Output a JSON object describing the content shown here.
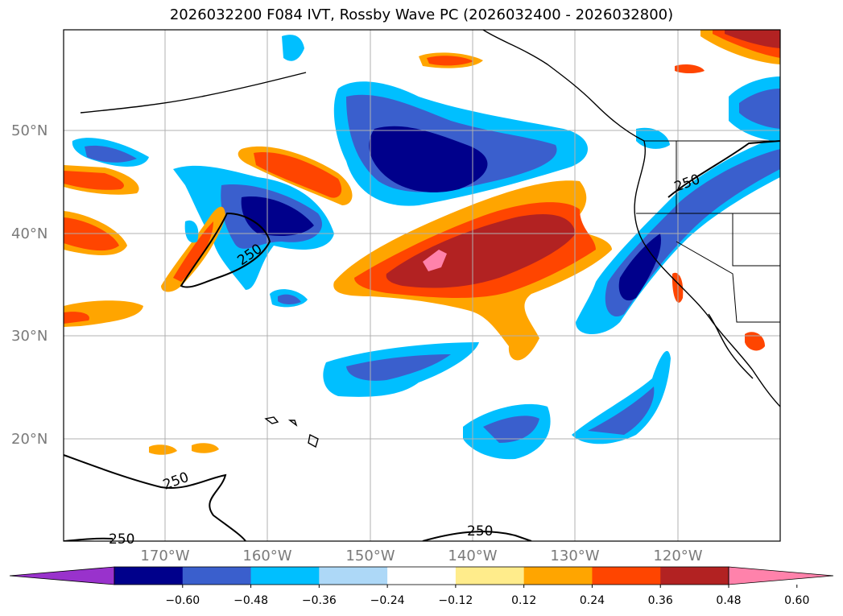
{
  "title": "2026032200 F084 IVT, Rossby Wave PC (2026032400 - 2026032800)",
  "lat_labels": [
    "50°N",
    "40°N",
    "30°N",
    "20°N"
  ],
  "lon_labels": [
    "170°W",
    "160°W",
    "150°W",
    "140°W",
    "130°W",
    "120°W"
  ],
  "contour_labels": [
    "250",
    "250",
    "250",
    "250",
    "250"
  ],
  "colorbar": {
    "ticks": [
      "−0.60",
      "−0.48",
      "−0.36",
      "−0.24",
      "−0.12",
      "0.12",
      "0.24",
      "0.36",
      "0.48",
      "0.60"
    ],
    "colors": [
      "#9932cc",
      "#00008b",
      "#3a5fcd",
      "#00bfff",
      "#add8f7",
      "#ffffff",
      "#ffec8b",
      "#ffa500",
      "#ff4500",
      "#b22222",
      "#ff82ab"
    ]
  },
  "colors": {
    "land_outline": "#000000",
    "gridline": "#b0b0b0",
    "axis_label": "#7a7a7a"
  }
}
